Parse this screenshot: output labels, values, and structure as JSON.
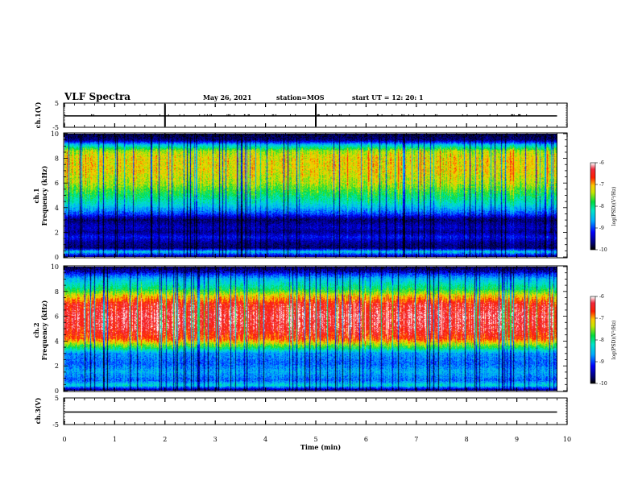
{
  "header": {
    "title": "VLF Spectra",
    "date": "May 26, 2021",
    "station": "station=MOS",
    "start": "start UT =  12: 20: 1"
  },
  "chart_data": [
    {
      "type": "line",
      "name": "ch1-voltage",
      "ylabel": "ch.1(V)",
      "ylim": [
        -5,
        5
      ],
      "yticks": [
        5,
        -5
      ],
      "baseline": -0.3,
      "x": [
        0,
        10
      ],
      "values": [
        -0.3,
        -0.3
      ]
    },
    {
      "type": "heatmap",
      "name": "ch1-spectrogram",
      "ylabel": "ch.1\nFrequency (kHz)",
      "ylim": [
        0,
        10
      ],
      "yticks": [
        0,
        2,
        4,
        6,
        8,
        10
      ],
      "xlim": [
        0,
        10
      ],
      "data_end_min": 9.8,
      "colorbar": {
        "label": "log(PSD)(V²/Hz)",
        "range": [
          -10,
          -6
        ],
        "ticks": [
          -6,
          -7,
          -8,
          -9,
          -10
        ]
      },
      "band_profile": [
        {
          "f": 0.0,
          "v": -9.6
        },
        {
          "f": 0.4,
          "v": -8.4
        },
        {
          "f": 0.7,
          "v": -9.7
        },
        {
          "f": 1.1,
          "v": -9.6
        },
        {
          "f": 1.6,
          "v": -9.2
        },
        {
          "f": 2.0,
          "v": -9.6
        },
        {
          "f": 2.4,
          "v": -9.4
        },
        {
          "f": 3.0,
          "v": -9.7
        },
        {
          "f": 3.5,
          "v": -9.0
        },
        {
          "f": 4.3,
          "v": -8.3
        },
        {
          "f": 5.0,
          "v": -7.9
        },
        {
          "f": 6.0,
          "v": -7.4
        },
        {
          "f": 7.0,
          "v": -7.2
        },
        {
          "f": 8.0,
          "v": -7.2
        },
        {
          "f": 8.6,
          "v": -7.4
        },
        {
          "f": 9.1,
          "v": -8.4
        },
        {
          "f": 9.5,
          "v": -9.6
        },
        {
          "f": 10.0,
          "v": -9.9
        }
      ]
    },
    {
      "type": "heatmap",
      "name": "ch2-spectrogram",
      "ylabel": "ch.2\nFrequency (kHz)",
      "ylim": [
        0,
        10
      ],
      "yticks": [
        0,
        2,
        4,
        6,
        8,
        10
      ],
      "xlim": [
        0,
        10
      ],
      "data_end_min": 9.8,
      "colorbar": {
        "label": "log(PSD)(V²/Hz)",
        "range": [
          -10,
          -6
        ],
        "ticks": [
          -6,
          -7,
          -8,
          -9,
          -10
        ]
      },
      "band_profile": [
        {
          "f": 0.0,
          "v": -9.7
        },
        {
          "f": 0.4,
          "v": -8.3
        },
        {
          "f": 0.8,
          "v": -8.9
        },
        {
          "f": 1.5,
          "v": -8.6
        },
        {
          "f": 2.2,
          "v": -8.9
        },
        {
          "f": 3.0,
          "v": -8.7
        },
        {
          "f": 3.5,
          "v": -7.8
        },
        {
          "f": 4.2,
          "v": -6.7
        },
        {
          "f": 5.0,
          "v": -6.4
        },
        {
          "f": 6.0,
          "v": -6.3
        },
        {
          "f": 7.0,
          "v": -6.5
        },
        {
          "f": 7.7,
          "v": -7.2
        },
        {
          "f": 8.2,
          "v": -7.9
        },
        {
          "f": 9.0,
          "v": -8.5
        },
        {
          "f": 9.6,
          "v": -9.3
        },
        {
          "f": 10.0,
          "v": -9.8
        }
      ]
    },
    {
      "type": "line",
      "name": "ch3-voltage",
      "ylabel": "ch.3(V)",
      "ylim": [
        -5,
        5
      ],
      "yticks": [
        5,
        -5
      ],
      "baseline": -0.3,
      "x": [
        0,
        10
      ],
      "values": [
        -0.3,
        -0.3
      ]
    }
  ],
  "xaxis": {
    "label": "Time (min)",
    "range": [
      0,
      10
    ],
    "ticks": [
      "0",
      "1",
      "2",
      "3",
      "4",
      "5",
      "6",
      "7",
      "8",
      "9",
      "10"
    ]
  }
}
